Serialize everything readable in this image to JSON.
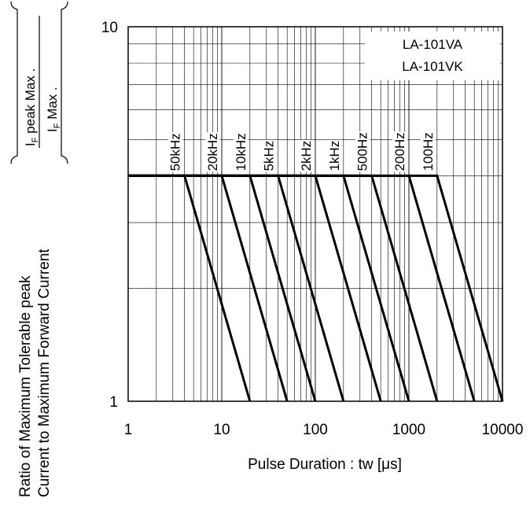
{
  "chart_data": {
    "type": "line",
    "xscale": "log",
    "yscale": "log",
    "xlim": [
      1,
      10000
    ],
    "ylim": [
      1,
      10
    ],
    "grid": true,
    "xlabel": "Pulse Duration : tw [μs]",
    "ylabel_line1": "Ratio of Maximum Tolerable peak",
    "ylabel_line2": "Current to Maximum Forward Current",
    "ylabel_formula": {
      "num_main": "I",
      "num_sub": "F",
      "num_rest": " peak Max .",
      "den_main": "I",
      "den_sub": "F",
      "den_rest": " Max ."
    },
    "x_ticks": [
      "1",
      "10",
      "100",
      "1000",
      "10000"
    ],
    "y_ticks": [
      "1",
      "10"
    ],
    "legend": [
      "LA-101VA",
      "LA-101VK"
    ],
    "legend_position": "top-right",
    "plateau_value": 4.0,
    "series": [
      {
        "name": "50kHz",
        "points": [
          [
            1,
            4.0
          ],
          [
            4,
            4.0
          ],
          [
            20,
            1
          ]
        ]
      },
      {
        "name": "20kHz",
        "points": [
          [
            1,
            4.0
          ],
          [
            10,
            4.0
          ],
          [
            50,
            1
          ]
        ]
      },
      {
        "name": "10kHz",
        "points": [
          [
            1,
            4.0
          ],
          [
            20,
            4.0
          ],
          [
            100,
            1
          ]
        ]
      },
      {
        "name": "5kHz",
        "points": [
          [
            1,
            4.0
          ],
          [
            40,
            4.0
          ],
          [
            200,
            1
          ]
        ]
      },
      {
        "name": "2kHz",
        "points": [
          [
            1,
            4.0
          ],
          [
            100,
            4.0
          ],
          [
            500,
            1
          ]
        ]
      },
      {
        "name": "1kHz",
        "points": [
          [
            1,
            4.0
          ],
          [
            200,
            4.0
          ],
          [
            1000,
            1
          ]
        ]
      },
      {
        "name": "500Hz",
        "points": [
          [
            1,
            4.0
          ],
          [
            400,
            4.0
          ],
          [
            2000,
            1
          ]
        ]
      },
      {
        "name": "200Hz",
        "points": [
          [
            1,
            4.0
          ],
          [
            1000,
            4.0
          ],
          [
            5000,
            1
          ]
        ]
      },
      {
        "name": "100Hz",
        "points": [
          [
            1,
            4.0
          ],
          [
            2000,
            4.0
          ],
          [
            10000,
            1
          ]
        ]
      }
    ]
  }
}
